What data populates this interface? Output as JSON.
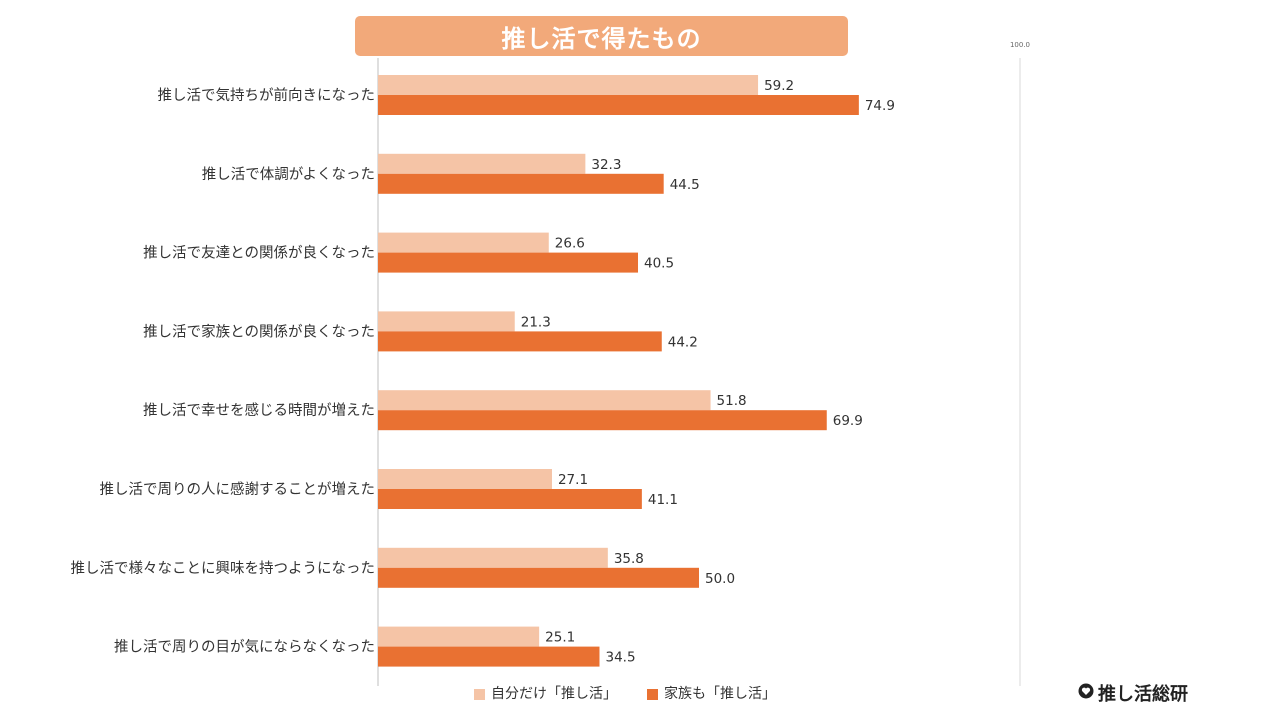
{
  "title": "推し活で得たもの",
  "colors": {
    "self": "#F5C4A6",
    "family": "#E97132",
    "title_bg": "#F2A97A",
    "axis": "#BFBFBF"
  },
  "legend": {
    "self": "自分だけ「推し活」",
    "family": "家族も「推し活」"
  },
  "brand": "推し活総研",
  "brand_icon": "heart-icon",
  "chart_data": {
    "type": "bar",
    "orientation": "horizontal",
    "xlim": [
      0,
      100
    ],
    "max_tick_label": "100.0",
    "grid": false,
    "legend_position": "bottom",
    "categories": [
      "推し活で気持ちが前向きになった",
      "推し活で体調がよくなった",
      "推し活で友達との関係が良くなった",
      "推し活で家族との関係が良くなった",
      "推し活で幸せを感じる時間が増えた",
      "推し活で周りの人に感謝することが増えた",
      "推し活で様々なことに興味を持つようになった",
      "推し活で周りの目が気にならなくなった"
    ],
    "series": [
      {
        "name": "自分だけ「推し活」",
        "values": [
          59.2,
          32.3,
          26.6,
          21.3,
          51.8,
          27.1,
          35.8,
          25.1
        ],
        "labels": [
          "59.2",
          "32.3",
          "26.6",
          "21.3",
          "51.8",
          "27.1",
          "35.8",
          "25.1"
        ]
      },
      {
        "name": "家族も「推し活」",
        "values": [
          74.9,
          44.5,
          40.5,
          44.2,
          69.9,
          41.1,
          50.0,
          34.5
        ],
        "labels": [
          "74.9",
          "44.5",
          "40.5",
          "44.2",
          "69.9",
          "41.1",
          "50.0",
          "34.5"
        ]
      }
    ]
  }
}
